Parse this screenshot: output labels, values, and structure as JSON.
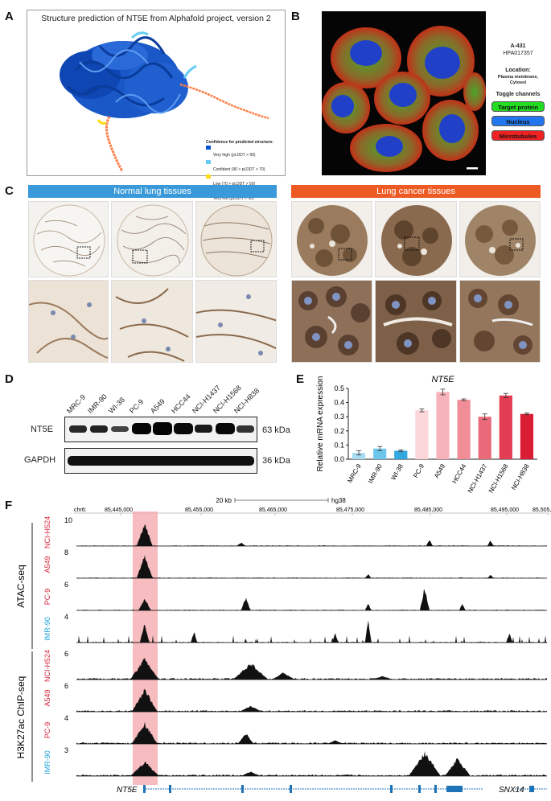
{
  "panels": {
    "A": {
      "label": "A",
      "title": "Structure prediction of NT5E from Alphafold project, version 2",
      "legend_title": "Confidence for predicted structure:",
      "legend": [
        {
          "label": "Very high (pLDDT > 90)",
          "color": "#0053d6"
        },
        {
          "label": "Confident (90 > pLDDT > 70)",
          "color": "#65cbf3"
        },
        {
          "label": "Low (70 > pLDDT > 50)",
          "color": "#ffdb13"
        },
        {
          "label": "Very low (pLDDT < 50)",
          "color": "#ff7d45"
        }
      ]
    },
    "B": {
      "label": "B",
      "cell_line": "A-431",
      "antibody": "HPA017357",
      "location_label": "Location:",
      "location_value": "Plasma membrane, Cytosol",
      "toggle_label": "Toggle channels",
      "channels": [
        {
          "label": "Target protein",
          "color": "#22dd22"
        },
        {
          "label": "Nucleus",
          "color": "#2277ee"
        },
        {
          "label": "Microtubules",
          "color": "#ee2222"
        }
      ]
    },
    "C": {
      "label": "C",
      "normal_header": "Normal lung tissues",
      "cancer_header": "Lung cancer tissues",
      "normal_color": "#3a9ad9",
      "cancer_color": "#ee5a24"
    },
    "D": {
      "label": "D",
      "samples": [
        "MRC-9",
        "IMR-90",
        "WI-38",
        "PC-9",
        "A549",
        "HCC44",
        "NCI-H1437",
        "NCI-H1568",
        "NCI-H838"
      ],
      "rows": [
        {
          "name": "NT5E",
          "size": "63 kDa"
        },
        {
          "name": "GAPDH",
          "size": "36 kDa"
        }
      ]
    },
    "F": {
      "label": "F",
      "scale_label": "20 kb",
      "genome": "hg38",
      "chrom": "chr6:",
      "coords": [
        "85,445,000",
        "85,455,000",
        "85,465,000",
        "85,475,000",
        "85,485,000",
        "85,495,000",
        "85,505,000"
      ],
      "group1": "ATAC-seq",
      "group2": "H3K27ac ChIP-seq",
      "gene_left": "NT5E",
      "gene_right": "SNX14",
      "highlight_color": "#f4a6aa",
      "tracks": [
        {
          "cell": "NCI-H524",
          "max": "10",
          "color": "#d7263d"
        },
        {
          "cell": "A549",
          "max": "8",
          "color": "#d7263d"
        },
        {
          "cell": "PC-9",
          "max": "6",
          "color": "#d7263d"
        },
        {
          "cell": "IMR-90",
          "max": "4",
          "color": "#1ea3d9"
        },
        {
          "cell": "NCI-H524",
          "max": "6",
          "color": "#d7263d"
        },
        {
          "cell": "A549",
          "max": "6",
          "color": "#d7263d"
        },
        {
          "cell": "PC-9",
          "max": "4",
          "color": "#d7263d"
        },
        {
          "cell": "IMR-90",
          "max": "3",
          "color": "#1ea3d9"
        }
      ]
    }
  },
  "chart_data": {
    "type": "bar",
    "panel_label": "E",
    "title": "NT5E",
    "ylabel": "Relative mRNA expression",
    "ylim": [
      0,
      0.5
    ],
    "yticks": [
      "0.0",
      "0.1",
      "0.2",
      "0.3",
      "0.4",
      "0.5"
    ],
    "categories": [
      "MRC-9",
      "IMR-90",
      "WI-38",
      "PC-9",
      "A549",
      "HCC44",
      "NCI-H1437",
      "NCI-H1568",
      "NCI-H838"
    ],
    "values": [
      0.045,
      0.075,
      0.06,
      0.345,
      0.475,
      0.42,
      0.3,
      0.45,
      0.32
    ],
    "errors": [
      0.015,
      0.015,
      0.006,
      0.01,
      0.02,
      0.006,
      0.02,
      0.015,
      0.006
    ],
    "colors": [
      "#a9dcef",
      "#6cc6ec",
      "#31a8e0",
      "#fbd7da",
      "#f7b3ba",
      "#f08d97",
      "#ea6a79",
      "#e23d52",
      "#d91d35"
    ]
  }
}
